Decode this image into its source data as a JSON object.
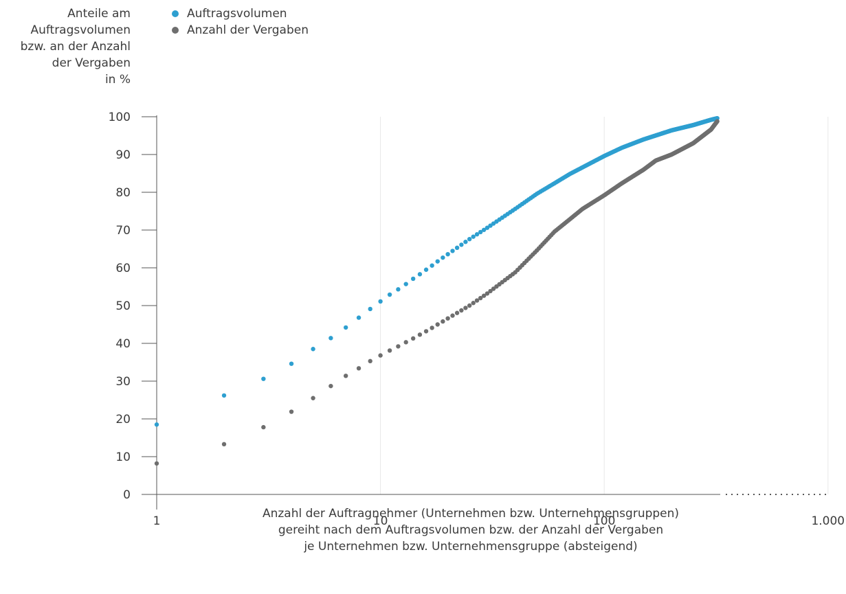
{
  "chart_data": {
    "type": "scatter",
    "title": "",
    "ylabel_lines": [
      "Anteile am",
      "Auftragsvolumen",
      "bzw. an der Anzahl",
      "der Vergaben",
      "in %"
    ],
    "xlabel_lines": [
      "Anzahl der Auftragnehmer (Unternehmen bzw. Unternehmensgruppen)",
      "gereiht nach dem Auftragsvolumen bzw. der Anzahl der Vergaben",
      "je Unternehmen bzw. Unternehmensgruppe (absteigend)"
    ],
    "x_scale": "log",
    "xlim": [
      1,
      1000
    ],
    "ylim": [
      0,
      100
    ],
    "x_ticks": [
      1,
      10,
      100,
      1000
    ],
    "x_tick_labels": [
      "1",
      "10",
      "100",
      "1.000"
    ],
    "y_ticks": [
      0,
      10,
      20,
      30,
      40,
      50,
      60,
      70,
      80,
      90,
      100
    ],
    "y_tick_labels": [
      "0",
      "10",
      "20",
      "30",
      "40",
      "50",
      "60",
      "70",
      "80",
      "90",
      "100"
    ],
    "grid": "vertical at x ticks",
    "legend_position": "top-left",
    "series": [
      {
        "name": "Auftragsvolumen",
        "color": "#2e9fd0",
        "points": [
          [
            1,
            18.5
          ],
          [
            2,
            26.2
          ],
          [
            3,
            30.6
          ],
          [
            4,
            34.6
          ],
          [
            5,
            38.5
          ],
          [
            6,
            41.4
          ],
          [
            7,
            44.2
          ],
          [
            8,
            46.8
          ],
          [
            9,
            49.1
          ],
          [
            10,
            51.1
          ],
          [
            11,
            52.9
          ],
          [
            12,
            54.3
          ],
          [
            13,
            55.7
          ],
          [
            14,
            57.1
          ],
          [
            15,
            58.3
          ],
          [
            16,
            59.5
          ],
          [
            17,
            60.6
          ],
          [
            18,
            61.7
          ],
          [
            19,
            62.7
          ],
          [
            20,
            63.6
          ],
          [
            25,
            67.6
          ],
          [
            30,
            70.6
          ],
          [
            40,
            75.6
          ],
          [
            50,
            79.6
          ],
          [
            60,
            82.4
          ],
          [
            70,
            84.8
          ],
          [
            80,
            86.6
          ],
          [
            100,
            89.6
          ],
          [
            120,
            91.8
          ],
          [
            150,
            94.0
          ],
          [
            200,
            96.4
          ],
          [
            250,
            97.8
          ],
          [
            300,
            99.2
          ],
          [
            320,
            99.6
          ]
        ]
      },
      {
        "name": "Anzahl der Vergaben",
        "color": "#6e6e6e",
        "points": [
          [
            1,
            8.2
          ],
          [
            2,
            13.3
          ],
          [
            3,
            17.8
          ],
          [
            4,
            21.9
          ],
          [
            5,
            25.5
          ],
          [
            6,
            28.7
          ],
          [
            7,
            31.4
          ],
          [
            8,
            33.4
          ],
          [
            9,
            35.3
          ],
          [
            10,
            36.8
          ],
          [
            11,
            38.1
          ],
          [
            12,
            39.2
          ],
          [
            13,
            40.3
          ],
          [
            14,
            41.3
          ],
          [
            15,
            42.3
          ],
          [
            16,
            43.2
          ],
          [
            17,
            44.1
          ],
          [
            18,
            45.0
          ],
          [
            19,
            45.8
          ],
          [
            20,
            46.6
          ],
          [
            25,
            50.0
          ],
          [
            30,
            53.2
          ],
          [
            40,
            58.8
          ],
          [
            50,
            64.6
          ],
          [
            60,
            69.6
          ],
          [
            70,
            72.8
          ],
          [
            80,
            75.6
          ],
          [
            100,
            79.2
          ],
          [
            120,
            82.4
          ],
          [
            150,
            86.0
          ],
          [
            170,
            88.4
          ],
          [
            200,
            90.0
          ],
          [
            250,
            93.0
          ],
          [
            300,
            96.6
          ],
          [
            320,
            98.8
          ]
        ]
      }
    ]
  }
}
